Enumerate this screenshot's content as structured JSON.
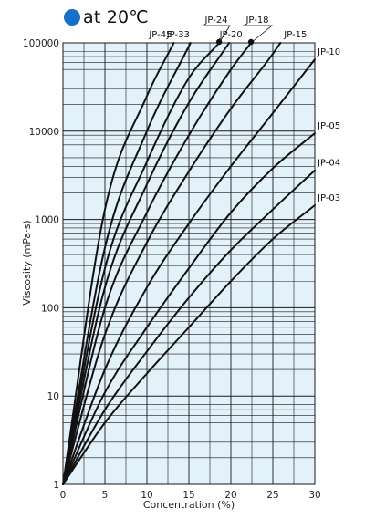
{
  "header": {
    "title": "at 20℃"
  },
  "chart_data": {
    "type": "line",
    "title": "at 20℃",
    "xlabel": "Concentration (%)",
    "ylabel": "Viscosity (mPa·s)",
    "xlim": [
      0,
      30
    ],
    "ylim": [
      1,
      100000
    ],
    "yscale": "log",
    "grid": true,
    "x_ticks": [
      "0",
      "5",
      "10",
      "15",
      "20",
      "25",
      "30"
    ],
    "y_ticks": [
      "1",
      "10",
      "100",
      "1000",
      "10000",
      "100000"
    ],
    "colors": {
      "plot_background": "#e3f1fb",
      "grid": "#1a1a1a",
      "line": "#111111",
      "title_dot": "#1470c8"
    },
    "series": [
      {
        "name": "JP-45",
        "x": [
          0,
          5,
          10,
          13.2
        ],
        "y": [
          1,
          1300,
          25000,
          100000
        ]
      },
      {
        "name": "JP-33",
        "x": [
          0,
          5,
          10,
          15.2
        ],
        "y": [
          1,
          480,
          10000,
          100000
        ]
      },
      {
        "name": "JP-24",
        "x": [
          0,
          5,
          10,
          15,
          18.6
        ],
        "y": [
          1,
          280,
          4500,
          40000,
          100000
        ]
      },
      {
        "name": "JP-20",
        "x": [
          0,
          5,
          10,
          15,
          19.8
        ],
        "y": [
          1,
          170,
          2500,
          21000,
          100000
        ]
      },
      {
        "name": "JP-18",
        "x": [
          0,
          5,
          10,
          15,
          20,
          22.4
        ],
        "y": [
          1,
          100,
          1200,
          9000,
          50000,
          100000
        ]
      },
      {
        "name": "JP-15",
        "x": [
          0,
          5,
          10,
          15,
          20,
          25,
          25.9
        ],
        "y": [
          1,
          50,
          550,
          3500,
          18000,
          75000,
          100000
        ]
      },
      {
        "name": "JP-10",
        "x": [
          0,
          5,
          10,
          15,
          20,
          25,
          30
        ],
        "y": [
          1,
          20,
          170,
          900,
          4000,
          16000,
          65000
        ]
      },
      {
        "name": "JP-05",
        "x": [
          0,
          5,
          10,
          15,
          20,
          25,
          30
        ],
        "y": [
          1,
          11,
          60,
          280,
          1200,
          3800,
          9500
        ]
      },
      {
        "name": "JP-04",
        "x": [
          0,
          5,
          10,
          15,
          20,
          25,
          30
        ],
        "y": [
          1,
          7,
          32,
          130,
          450,
          1300,
          3600
        ]
      },
      {
        "name": "JP-03",
        "x": [
          0,
          5,
          10,
          15,
          20,
          25,
          30
        ],
        "y": [
          1,
          5,
          18,
          60,
          200,
          600,
          1450
        ]
      }
    ]
  }
}
